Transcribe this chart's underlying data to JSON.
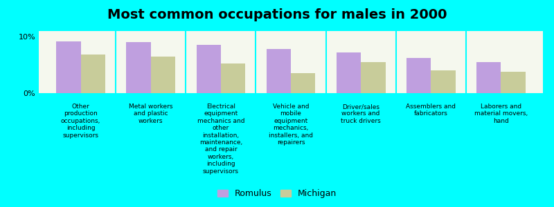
{
  "title": "Most common occupations for males in 2000",
  "categories": [
    "Other\nproduction\noccupations,\nincluding\nsupervisors",
    "Metal workers\nand plastic\nworkers",
    "Electrical\nequipment\nmechanics and\nother\ninstallation,\nmaintenance,\nand repair\nworkers,\nincluding\nsupervisors",
    "Vehicle and\nmobile\nequipment\nmechanics,\ninstallers, and\nrepairers",
    "Driver/sales\nworkers and\ntruck drivers",
    "Assemblers and\nfabricators",
    "Laborers and\nmaterial movers,\nhand"
  ],
  "romulus_values": [
    9.2,
    9.0,
    8.5,
    7.8,
    7.2,
    6.2,
    5.5
  ],
  "michigan_values": [
    6.8,
    6.5,
    5.2,
    3.5,
    5.5,
    4.0,
    3.8
  ],
  "romulus_color": "#bf9fdf",
  "michigan_color": "#c8cc9a",
  "background_color": "#00ffff",
  "plot_bg_color": "#f5f8ee",
  "ylim": [
    0,
    11
  ],
  "yticks": [
    0,
    10
  ],
  "ytick_labels": [
    "0%",
    "10%"
  ],
  "bar_width": 0.35,
  "legend_romulus": "Romulus",
  "legend_michigan": "Michigan",
  "title_fontsize": 14,
  "label_fontsize": 6.5
}
